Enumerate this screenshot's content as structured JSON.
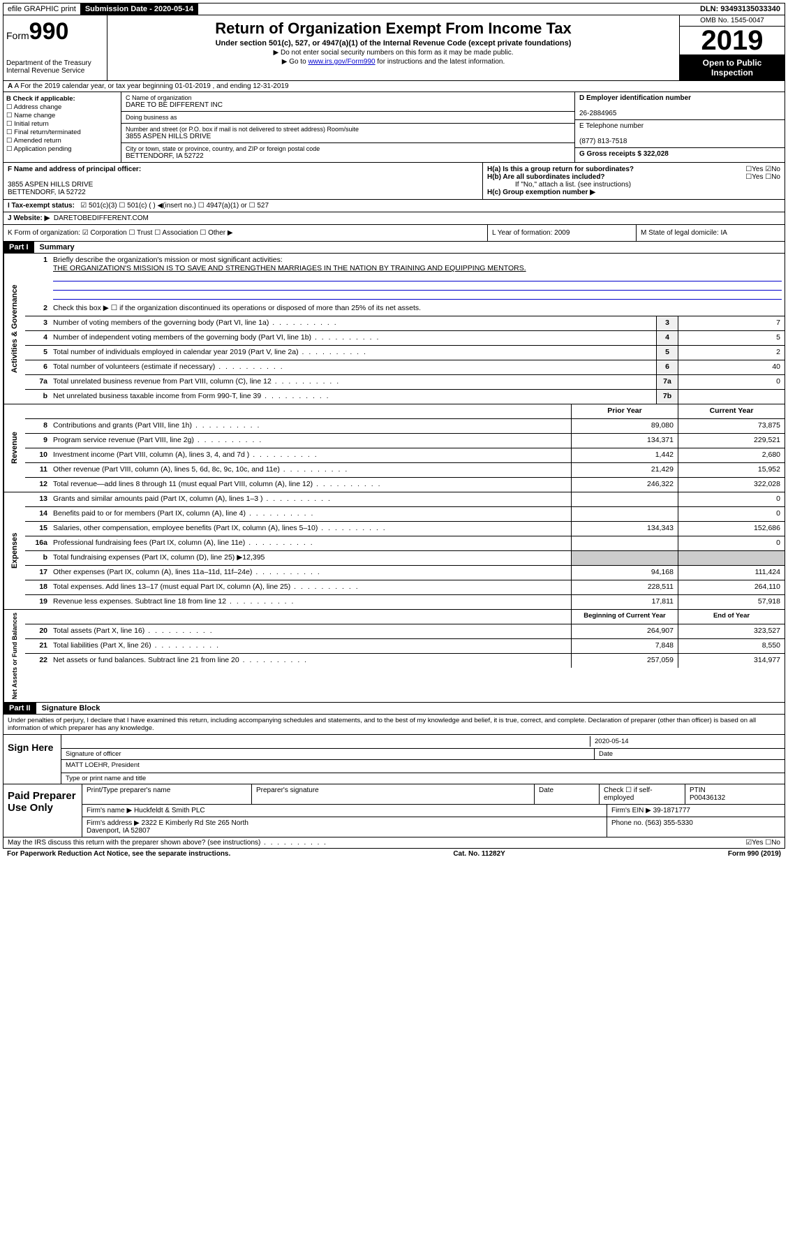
{
  "topbar": {
    "efile": "efile GRAPHIC print",
    "submission_label": "Submission Date - 2020-05-14",
    "dln": "DLN: 93493135033340"
  },
  "header": {
    "form_word": "Form",
    "form_num": "990",
    "dept": "Department of the Treasury\nInternal Revenue Service",
    "title": "Return of Organization Exempt From Income Tax",
    "sub": "Under section 501(c), 527, or 4947(a)(1) of the Internal Revenue Code (except private foundations)",
    "arrow1": "▶ Do not enter social security numbers on this form as it may be made public.",
    "arrow2_pre": "▶ Go to ",
    "arrow2_link": "www.irs.gov/Form990",
    "arrow2_post": " for instructions and the latest information.",
    "omb": "OMB No. 1545-0047",
    "year": "2019",
    "open": "Open to Public Inspection"
  },
  "sectionA": "A For the 2019 calendar year, or tax year beginning 01-01-2019   , and ending 12-31-2019",
  "colB": {
    "heading": "B Check if applicable:",
    "opts": [
      "Address change",
      "Name change",
      "Initial return",
      "Final return/terminated",
      "Amended return",
      "Application pending"
    ]
  },
  "colC": {
    "name_label": "C Name of organization",
    "name": "DARE TO BE DIFFERENT INC",
    "dba_label": "Doing business as",
    "addr_label": "Number and street (or P.O. box if mail is not delivered to street address)        Room/suite",
    "addr": "3855 ASPEN HILLS DRIVE",
    "city_label": "City or town, state or province, country, and ZIP or foreign postal code",
    "city": "BETTENDORF, IA  52722"
  },
  "colD": {
    "ein_label": "D Employer identification number",
    "ein": "26-2884965",
    "phone_label": "E Telephone number",
    "phone": "(877) 813-7518",
    "gross_label": "G Gross receipts $ 322,028"
  },
  "rowF": {
    "f_label": "F  Name and address of principal officer:",
    "f_addr": "3855 ASPEN HILLS DRIVE\nBETTENDORF, IA  52722",
    "ha": "H(a)  Is this a group return for subordinates?",
    "ha_ans": "☐Yes ☑No",
    "hb": "H(b)  Are all subordinates included?",
    "hb_ans": "☐Yes ☐No",
    "hb_note": "If \"No,\" attach a list. (see instructions)",
    "hc": "H(c)  Group exemption number ▶"
  },
  "rowI": {
    "label": "I    Tax-exempt status:",
    "opts": "☑ 501(c)(3)   ☐ 501(c) (  ) ◀(insert no.)   ☐ 4947(a)(1) or   ☐ 527"
  },
  "rowJ": {
    "label": "J    Website: ▶",
    "val": "DARETOBEDIFFERENT.COM"
  },
  "rowK": {
    "k": "K Form of organization:  ☑ Corporation  ☐ Trust  ☐ Association  ☐ Other ▶",
    "l": "L Year of formation: 2009",
    "m": "M State of legal domicile: IA"
  },
  "part1": {
    "header": "Part I",
    "title": "Summary"
  },
  "governance": {
    "side": "Activities & Governance",
    "l1_desc": "Briefly describe the organization's mission or most significant activities:",
    "l1_val": "THE ORGANIZATION'S MISSION IS TO SAVE AND STRENGTHEN MARRIAGES IN THE NATION BY TRAINING AND EQUIPPING MENTORS.",
    "l2": "Check this box ▶ ☐  if the organization discontinued its operations or disposed of more than 25% of its net assets.",
    "rows": [
      {
        "n": "3",
        "d": "Number of voting members of the governing body (Part VI, line 1a)",
        "b": "3",
        "v": "7"
      },
      {
        "n": "4",
        "d": "Number of independent voting members of the governing body (Part VI, line 1b)",
        "b": "4",
        "v": "5"
      },
      {
        "n": "5",
        "d": "Total number of individuals employed in calendar year 2019 (Part V, line 2a)",
        "b": "5",
        "v": "2"
      },
      {
        "n": "6",
        "d": "Total number of volunteers (estimate if necessary)",
        "b": "6",
        "v": "40"
      },
      {
        "n": "7a",
        "d": "Total unrelated business revenue from Part VIII, column (C), line 12",
        "b": "7a",
        "v": "0"
      },
      {
        "n": "b",
        "d": "Net unrelated business taxable income from Form 990-T, line 39",
        "b": "7b",
        "v": ""
      }
    ]
  },
  "revenue": {
    "side": "Revenue",
    "head_prior": "Prior Year",
    "head_curr": "Current Year",
    "rows": [
      {
        "n": "8",
        "d": "Contributions and grants (Part VIII, line 1h)",
        "p": "89,080",
        "c": "73,875"
      },
      {
        "n": "9",
        "d": "Program service revenue (Part VIII, line 2g)",
        "p": "134,371",
        "c": "229,521"
      },
      {
        "n": "10",
        "d": "Investment income (Part VIII, column (A), lines 3, 4, and 7d )",
        "p": "1,442",
        "c": "2,680"
      },
      {
        "n": "11",
        "d": "Other revenue (Part VIII, column (A), lines 5, 6d, 8c, 9c, 10c, and 11e)",
        "p": "21,429",
        "c": "15,952"
      },
      {
        "n": "12",
        "d": "Total revenue—add lines 8 through 11 (must equal Part VIII, column (A), line 12)",
        "p": "246,322",
        "c": "322,028"
      }
    ]
  },
  "expenses": {
    "side": "Expenses",
    "rows": [
      {
        "n": "13",
        "d": "Grants and similar amounts paid (Part IX, column (A), lines 1–3 )",
        "p": "",
        "c": "0"
      },
      {
        "n": "14",
        "d": "Benefits paid to or for members (Part IX, column (A), line 4)",
        "p": "",
        "c": "0"
      },
      {
        "n": "15",
        "d": "Salaries, other compensation, employee benefits (Part IX, column (A), lines 5–10)",
        "p": "134,343",
        "c": "152,686"
      },
      {
        "n": "16a",
        "d": "Professional fundraising fees (Part IX, column (A), line 11e)",
        "p": "",
        "c": "0"
      },
      {
        "n": "b",
        "d": "Total fundraising expenses (Part IX, column (D), line 25) ▶12,395",
        "p": null,
        "c": null
      },
      {
        "n": "17",
        "d": "Other expenses (Part IX, column (A), lines 11a–11d, 11f–24e)",
        "p": "94,168",
        "c": "111,424"
      },
      {
        "n": "18",
        "d": "Total expenses. Add lines 13–17 (must equal Part IX, column (A), line 25)",
        "p": "228,511",
        "c": "264,110"
      },
      {
        "n": "19",
        "d": "Revenue less expenses. Subtract line 18 from line 12",
        "p": "17,811",
        "c": "57,918"
      }
    ]
  },
  "netassets": {
    "side": "Net Assets or Fund Balances",
    "head_prior": "Beginning of Current Year",
    "head_curr": "End of Year",
    "rows": [
      {
        "n": "20",
        "d": "Total assets (Part X, line 16)",
        "p": "264,907",
        "c": "323,527"
      },
      {
        "n": "21",
        "d": "Total liabilities (Part X, line 26)",
        "p": "7,848",
        "c": "8,550"
      },
      {
        "n": "22",
        "d": "Net assets or fund balances. Subtract line 21 from line 20",
        "p": "257,059",
        "c": "314,977"
      }
    ]
  },
  "part2": {
    "header": "Part II",
    "title": "Signature Block",
    "perjury": "Under penalties of perjury, I declare that I have examined this return, including accompanying schedules and statements, and to the best of my knowledge and belief, it is true, correct, and complete. Declaration of preparer (other than officer) is based on all information of which preparer has any knowledge."
  },
  "sign": {
    "left": "Sign Here",
    "sig_label": "Signature of officer",
    "date": "2020-05-14",
    "date_label": "Date",
    "name": "MATT LOEHR, President",
    "name_label": "Type or print name and title"
  },
  "paid": {
    "left": "Paid Preparer Use Only",
    "h1": "Print/Type preparer's name",
    "h2": "Preparer's signature",
    "h3": "Date",
    "h4": "Check ☐ if self-employed",
    "h5_label": "PTIN",
    "h5": "P00436132",
    "firm_label": "Firm's name    ▶",
    "firm": "Huckfeldt & Smith PLC",
    "ein_label": "Firm's EIN ▶",
    "ein": "39-1871777",
    "addr_label": "Firm's address ▶",
    "addr": "2322 E Kimberly Rd Ste 265 North\nDavenport, IA  52807",
    "phone_label": "Phone no.",
    "phone": "(563) 355-5330"
  },
  "footer": {
    "discuss": "May the IRS discuss this return with the preparer shown above? (see instructions)",
    "ans": "☑Yes  ☐No",
    "pra": "For Paperwork Reduction Act Notice, see the separate instructions.",
    "cat": "Cat. No. 11282Y",
    "form": "Form 990 (2019)"
  }
}
